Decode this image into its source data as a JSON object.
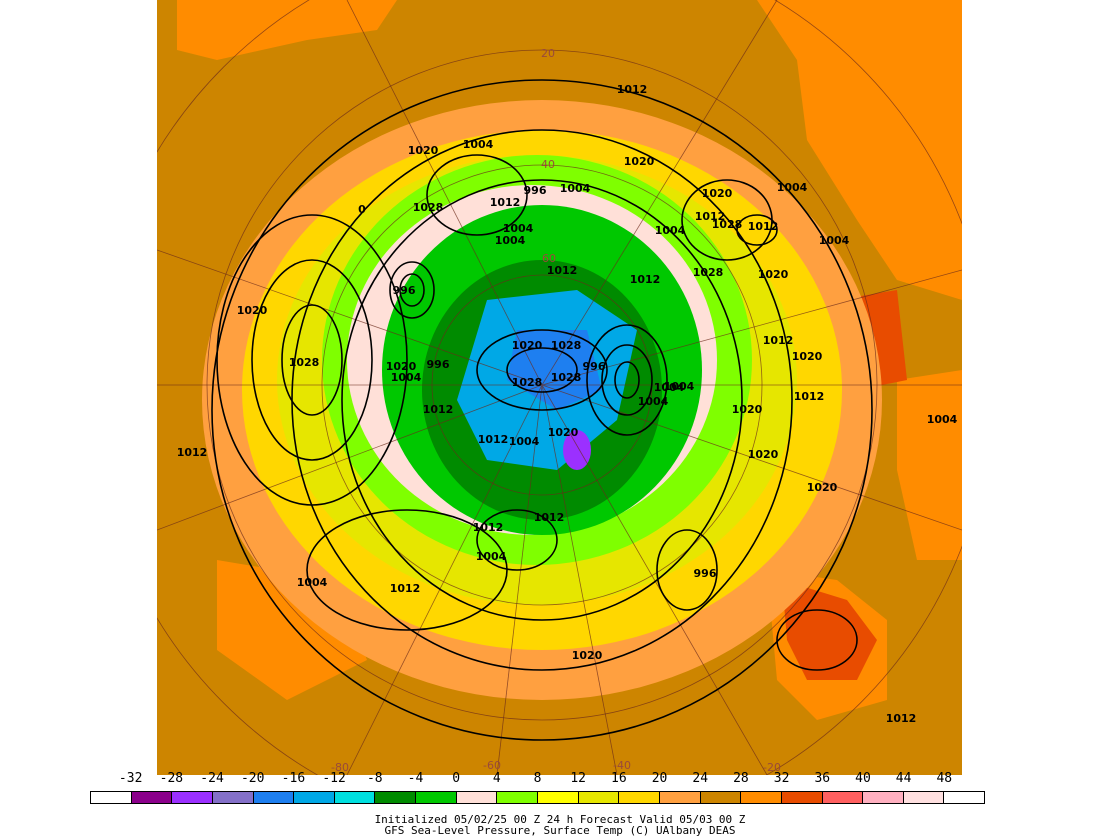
{
  "map": {
    "contour_labels": [
      "1012",
      "1020",
      "1004",
      "1004",
      "1020",
      "1028",
      "0",
      "996",
      "1004",
      "1012",
      "1004",
      "1020",
      "1012",
      "1028",
      "1004",
      "1004",
      "1012",
      "1004",
      "1028",
      "1012",
      "1020",
      "1012",
      "996",
      "1020",
      "1028",
      "1028",
      "1020",
      "1028",
      "1028",
      "1004",
      "1004",
      "996",
      "996",
      "1012",
      "1012",
      "1012",
      "1020",
      "1004",
      "1012",
      "1020",
      "1020",
      "1020",
      "1012",
      "1020",
      "1012",
      "1004",
      "1004",
      "1012",
      "996",
      "1004",
      "1004",
      "1012",
      "1020",
      "1012",
      "1020",
      "1004"
    ],
    "latitude_labels": [
      "20",
      "40",
      "60",
      "-80",
      "-60",
      "-40",
      "-20"
    ]
  },
  "colorbar": {
    "labels": [
      "-32",
      "-28",
      "-24",
      "-20",
      "-16",
      "-12",
      "-8",
      "-4",
      "0",
      "4",
      "8",
      "12",
      "16",
      "20",
      "24",
      "28",
      "32",
      "36",
      "40",
      "44",
      "48"
    ],
    "colors": [
      "#ffffff",
      "#8b008b",
      "#9b30ff",
      "#8470c8",
      "#1e7ff0",
      "#00a8e6",
      "#00e0e0",
      "#008b00",
      "#00c800",
      "#ffe0d8",
      "#7fff00",
      "#ffff00",
      "#e6e600",
      "#ffd700",
      "#ffa040",
      "#cd8500",
      "#ff8c00",
      "#e84c00",
      "#ff6060",
      "#ffb0c0",
      "#ffe0e0",
      "#ffffff"
    ]
  },
  "footer": {
    "line1": "Initialized 05/02/25 00 Z  24 h Forecast Valid 05/03 00 Z",
    "line2": "GFS Sea-Level Pressure, Surface Temp (C)    UAlbany DEAS"
  }
}
